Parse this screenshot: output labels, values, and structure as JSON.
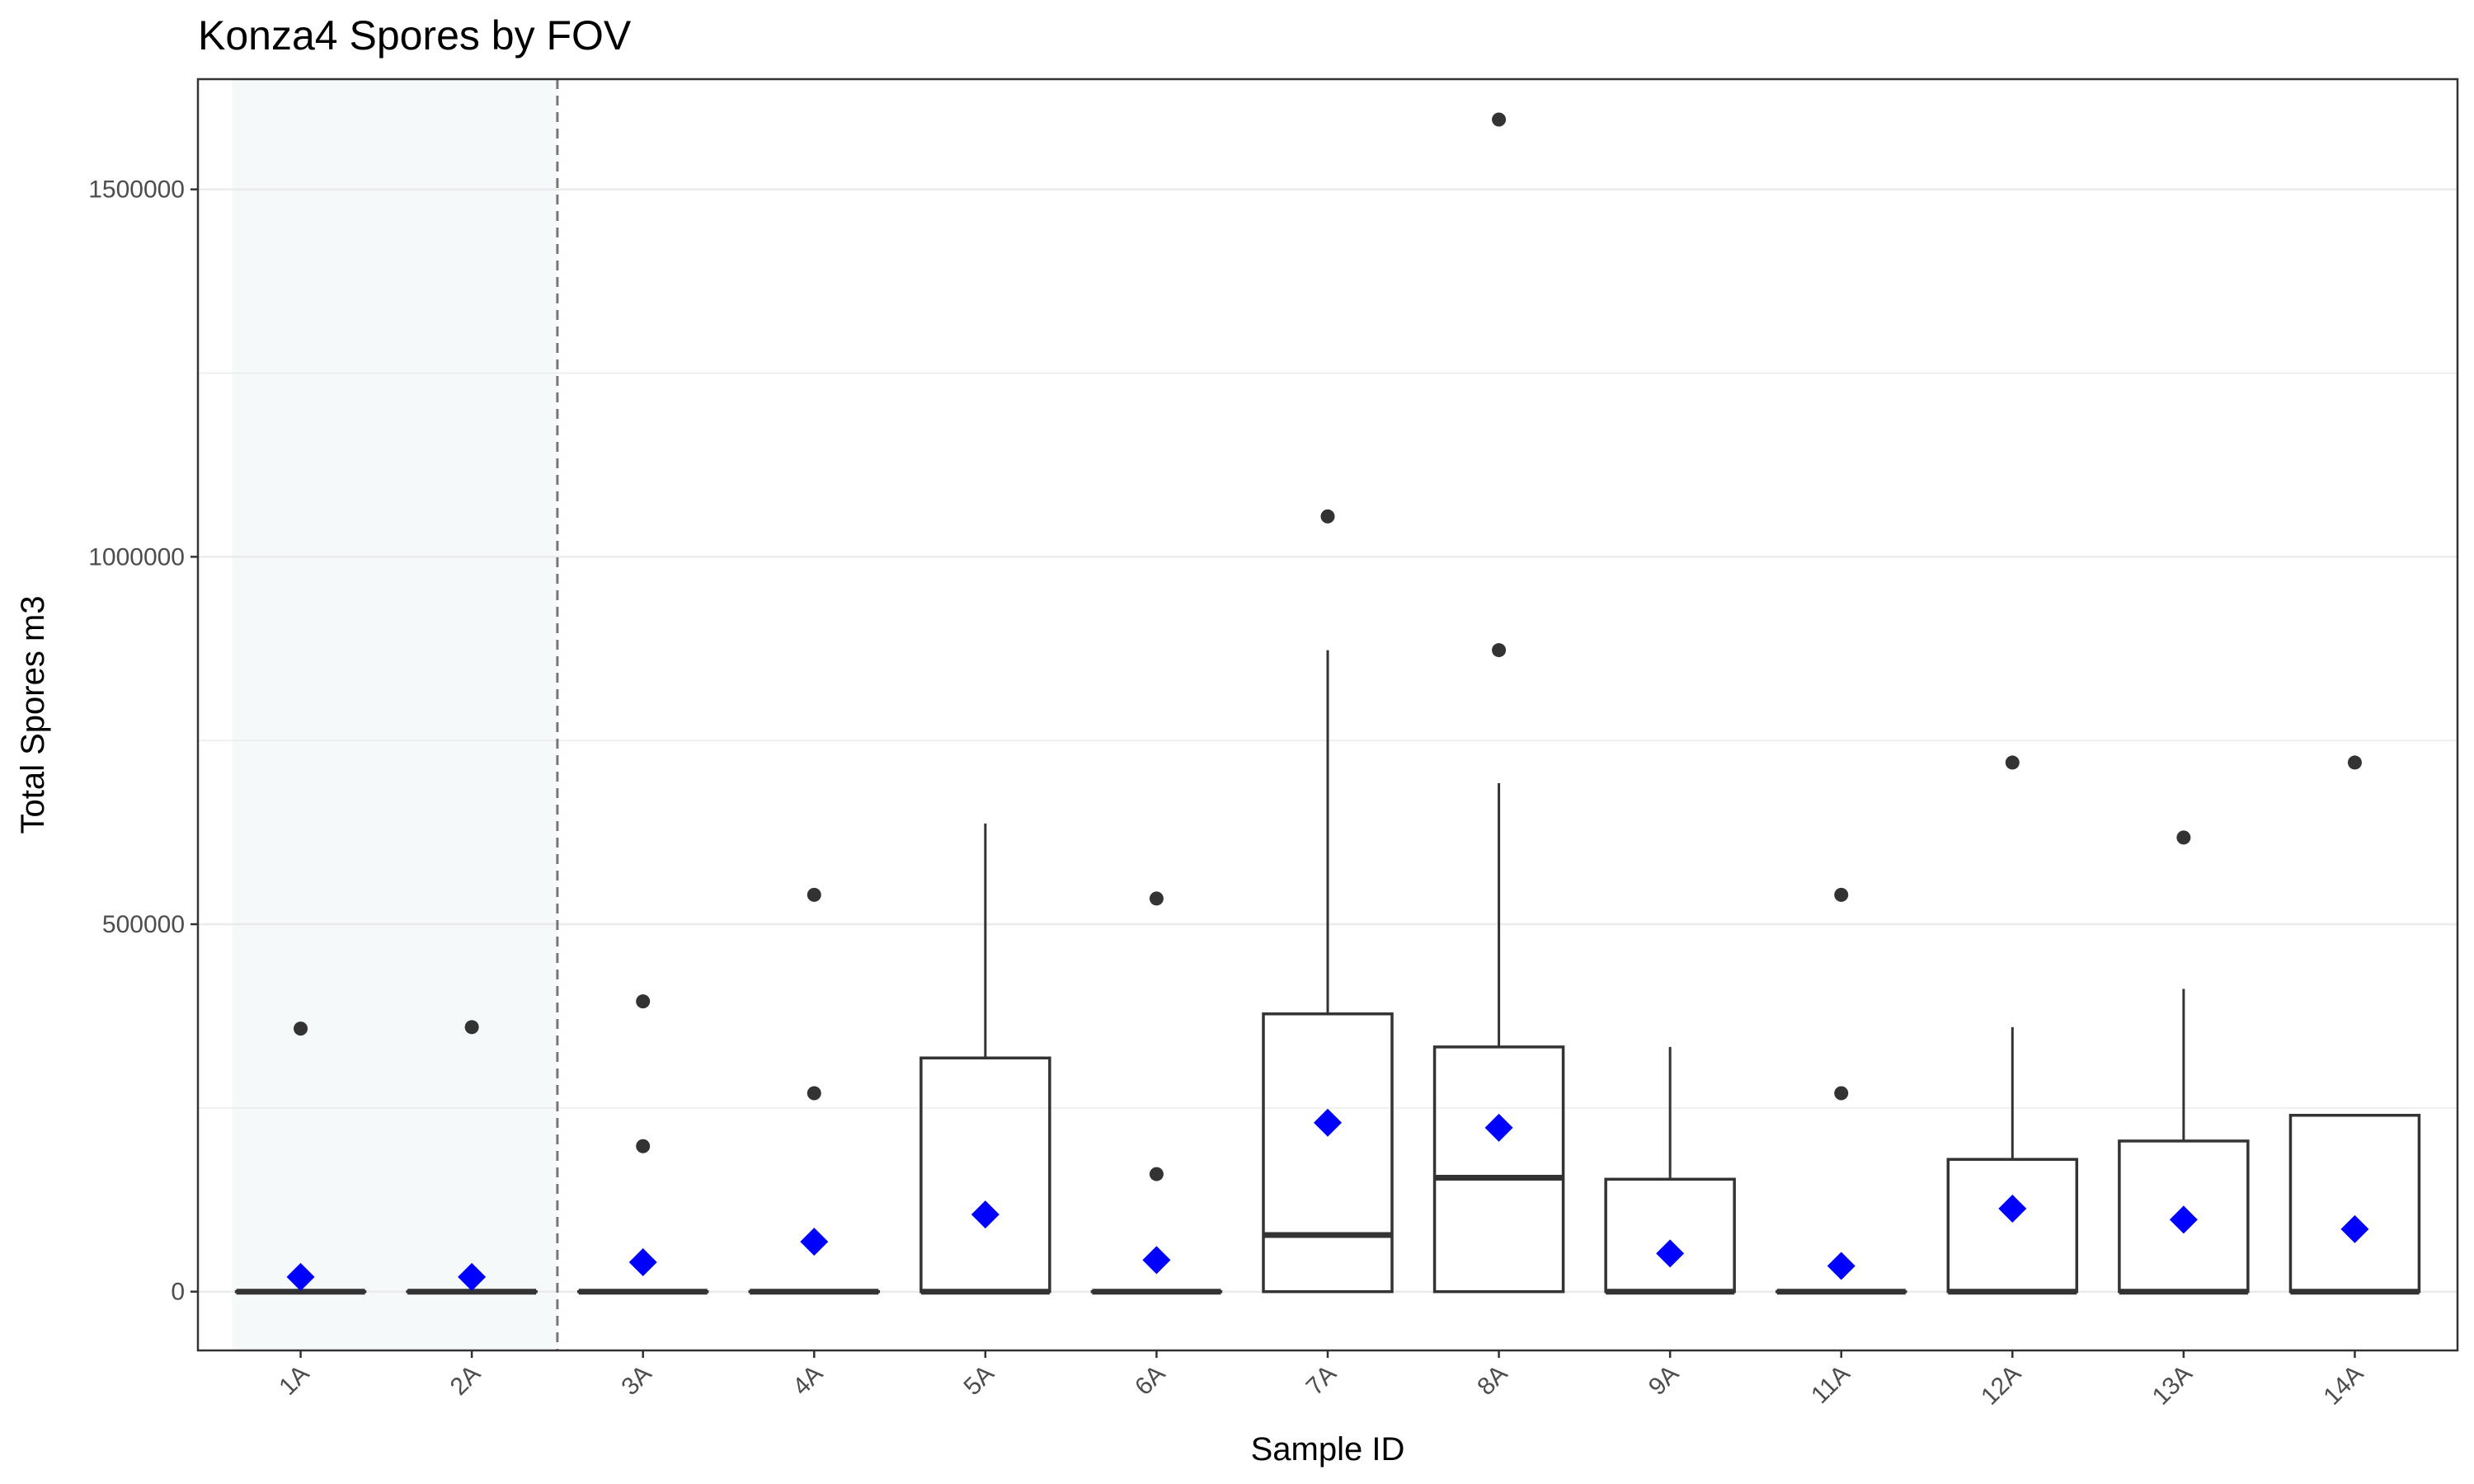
{
  "chart_data": {
    "type": "box",
    "title": "Konza4 Spores by FOV",
    "xlabel": "Sample ID",
    "ylabel": "Total Spores m3",
    "categories": [
      "1A",
      "2A",
      "3A",
      "4A",
      "5A",
      "6A",
      "7A",
      "8A",
      "9A",
      "11A",
      "12A",
      "13A",
      "14A"
    ],
    "ylim": [
      -80000,
      1650000
    ],
    "yticks": [
      0,
      500000,
      1000000,
      1500000
    ],
    "ytick_labels": [
      "0",
      "500000",
      "1000000",
      "1500000"
    ],
    "grid": true,
    "boxes": [
      {
        "id": "1A",
        "q1": 0,
        "median": 0,
        "q3": 0,
        "whisker_low": 0,
        "whisker_high": 0,
        "mean": 20000,
        "outliers": [
          358000
        ]
      },
      {
        "id": "2A",
        "q1": 0,
        "median": 0,
        "q3": 0,
        "whisker_low": 0,
        "whisker_high": 0,
        "mean": 20000,
        "outliers": [
          360000
        ]
      },
      {
        "id": "3A",
        "q1": 0,
        "median": 0,
        "q3": 0,
        "whisker_low": 0,
        "whisker_high": 0,
        "mean": 40000,
        "outliers": [
          395000,
          198000
        ]
      },
      {
        "id": "4A",
        "q1": 0,
        "median": 0,
        "q3": 0,
        "whisker_low": 0,
        "whisker_high": 0,
        "mean": 68000,
        "outliers": [
          540000,
          270000
        ]
      },
      {
        "id": "5A",
        "q1": 0,
        "median": 0,
        "q3": 318000,
        "whisker_low": 0,
        "whisker_high": 637000,
        "mean": 105000,
        "outliers": []
      },
      {
        "id": "6A",
        "q1": 0,
        "median": 0,
        "q3": 0,
        "whisker_low": 0,
        "whisker_high": 0,
        "mean": 43000,
        "outliers": [
          535000,
          160000
        ]
      },
      {
        "id": "7A",
        "q1": 0,
        "median": 77000,
        "q3": 378000,
        "whisker_low": 0,
        "whisker_high": 873000,
        "mean": 230000,
        "outliers": [
          1055000
        ]
      },
      {
        "id": "8A",
        "q1": 0,
        "median": 155000,
        "q3": 333000,
        "whisker_low": 0,
        "whisker_high": 692000,
        "mean": 223000,
        "outliers": [
          1595000,
          873000
        ]
      },
      {
        "id": "9A",
        "q1": 0,
        "median": 0,
        "q3": 153000,
        "whisker_low": 0,
        "whisker_high": 333000,
        "mean": 52000,
        "outliers": []
      },
      {
        "id": "11A",
        "q1": 0,
        "median": 0,
        "q3": 0,
        "whisker_low": 0,
        "whisker_high": 0,
        "mean": 35000,
        "outliers": [
          540000,
          270000
        ]
      },
      {
        "id": "12A",
        "q1": 0,
        "median": 0,
        "q3": 180000,
        "whisker_low": 0,
        "whisker_high": 360000,
        "mean": 113000,
        "outliers": [
          720000
        ]
      },
      {
        "id": "13A",
        "q1": 0,
        "median": 0,
        "q3": 205000,
        "whisker_low": 0,
        "whisker_high": 412000,
        "mean": 98000,
        "outliers": [
          618000
        ]
      },
      {
        "id": "14A",
        "q1": 0,
        "median": 0,
        "q3": 240000,
        "whisker_low": 0,
        "whisker_high": 240000,
        "mean": 85000,
        "outliers": [
          720000
        ]
      }
    ],
    "highlight_region": {
      "from_category": "1A",
      "to_category": "2A"
    },
    "divider_after_category": "2A",
    "colors": {
      "box_stroke": "#333333",
      "outlier": "#333333",
      "mean_marker": "#0000ff",
      "highlight_fill": "#f5f9fa",
      "divider": "#777777",
      "grid": "#ebebeb",
      "panel_border": "#333333"
    }
  }
}
